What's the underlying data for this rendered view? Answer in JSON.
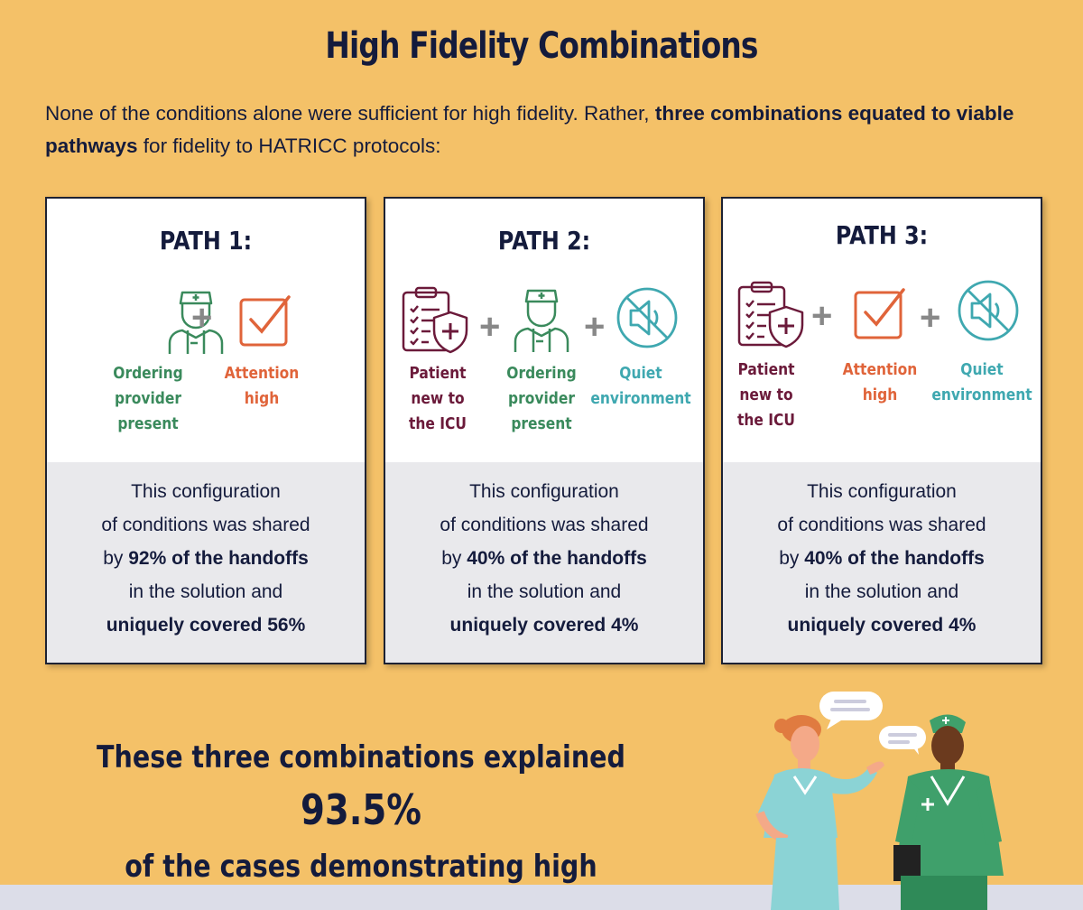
{
  "title": "High Fidelity Combinations",
  "intro": {
    "text1": "None of the conditions alone were sufficient for high fidelity. Rather, ",
    "bold": "three combinations equated to viable pathways",
    "text2": " for fidelity to HATRICC protocols:"
  },
  "paths": [
    {
      "title": "PATH 1:",
      "conditions": [
        {
          "icon": "nurse-icon",
          "label": [
            "Ordering",
            "provider",
            "present"
          ]
        },
        {
          "icon": "checkbox-icon",
          "label": [
            "Attention",
            "high"
          ]
        }
      ],
      "desc": {
        "l1": "This configuration",
        "l2": "of conditions was shared",
        "by": "by ",
        "pct": "92% of the handoffs",
        "l4": "in the solution and",
        "unique": "uniquely covered 56%"
      }
    },
    {
      "title": "PATH 2:",
      "conditions": [
        {
          "icon": "clipboard-icon",
          "label": [
            "Patient",
            "new to",
            "the ICU"
          ]
        },
        {
          "icon": "nurse-icon",
          "label": [
            "Ordering",
            "provider",
            "present"
          ]
        },
        {
          "icon": "muted-speaker-icon",
          "label": [
            "Quiet",
            "environment"
          ]
        }
      ],
      "desc": {
        "l1": "This configuration",
        "l2": "of conditions was shared",
        "by": "by ",
        "pct": "40% of the handoffs",
        "l4": "in the solution and",
        "unique": "uniquely covered 4%"
      }
    },
    {
      "title": "PATH 3:",
      "conditions": [
        {
          "icon": "clipboard-icon",
          "label": [
            "Patient",
            "new to",
            "the ICU"
          ]
        },
        {
          "icon": "checkbox-icon",
          "label": [
            "Attention",
            "high"
          ]
        },
        {
          "icon": "muted-speaker-icon",
          "label": [
            "Quiet",
            "environment"
          ]
        }
      ],
      "desc": {
        "l1": "This configuration",
        "l2": "of conditions was shared",
        "by": "by ",
        "pct": "40% of the handoffs",
        "l4": "in the solution and",
        "unique": "uniquely covered 4%"
      }
    }
  ],
  "plus": "+",
  "summary": {
    "line1a": "These three combinations explained ",
    "pct": "93.5%",
    "line2": "of the cases demonstrating high fidelity."
  },
  "colors": {
    "background": "#f4c168",
    "navy": "#141b3c",
    "green": "#3a8a5c",
    "orange": "#e0643a",
    "teal": "#3fa8b0",
    "maroon": "#6b1a3a"
  }
}
